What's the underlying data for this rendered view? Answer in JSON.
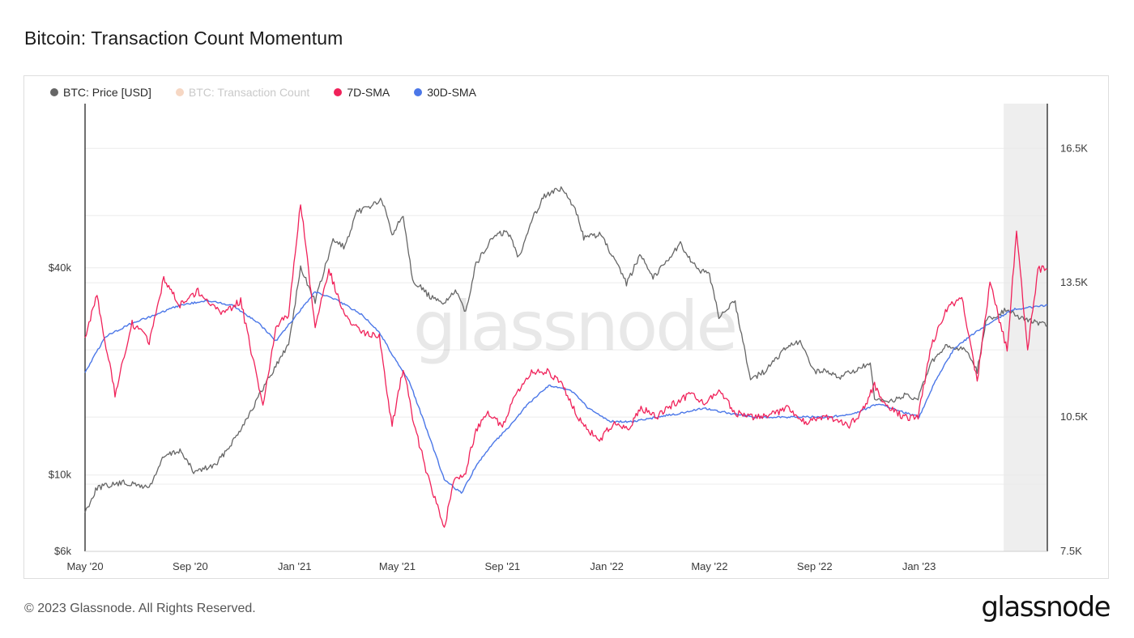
{
  "title": "Bitcoin: Transaction Count Momentum",
  "footer": "© 2023 Glassnode. All Rights Reserved.",
  "logo_text": "glassnode",
  "watermark": "glassnode",
  "legend": [
    {
      "label": "BTC: Price [USD]",
      "color": "#666666",
      "muted": false
    },
    {
      "label": "BTC: Transaction Count",
      "color": "#f6d7c3",
      "muted": true
    },
    {
      "label": "7D-SMA",
      "color": "#f0225a",
      "muted": false
    },
    {
      "label": "30D-SMA",
      "color": "#4b77e8",
      "muted": false
    }
  ],
  "chart_data": {
    "type": "line",
    "title": "Bitcoin: Transaction Count Momentum",
    "x_axis": {
      "range": [
        "2020-05-01",
        "2023-05-31"
      ],
      "tick_labels": [
        "May '20",
        "Sep '20",
        "Jan '21",
        "May '21",
        "Sep '21",
        "Jan '22",
        "May '22",
        "Sep '22",
        "Jan '23"
      ]
    },
    "y_left": {
      "scale": "log",
      "range": [
        6000,
        120000
      ],
      "tick_labels": [
        "$6k",
        "$10k",
        "$40k"
      ],
      "tick_values": [
        6000,
        10000,
        40000
      ]
    },
    "y_right": {
      "scale": "linear",
      "range": [
        7500,
        17500
      ],
      "tick_labels": [
        "7.5K",
        "10.5K",
        "13.5K",
        "16.5K"
      ],
      "tick_values": [
        7500,
        10500,
        13500,
        16500
      ]
    },
    "series": [
      {
        "name": "BTC: Price [USD]",
        "axis": "left",
        "color": "#666666",
        "points": [
          [
            "2020-05-01",
            7800
          ],
          [
            "2020-05-15",
            9200
          ],
          [
            "2020-06-15",
            9500
          ],
          [
            "2020-07-15",
            9200
          ],
          [
            "2020-08-01",
            11300
          ],
          [
            "2020-08-20",
            11800
          ],
          [
            "2020-09-05",
            10200
          ],
          [
            "2020-10-01",
            10700
          ],
          [
            "2020-10-25",
            13000
          ],
          [
            "2020-11-15",
            16000
          ],
          [
            "2020-12-01",
            19000
          ],
          [
            "2020-12-25",
            24000
          ],
          [
            "2021-01-08",
            40000
          ],
          [
            "2021-01-25",
            32000
          ],
          [
            "2021-02-15",
            48000
          ],
          [
            "2021-03-01",
            46000
          ],
          [
            "2021-03-15",
            58000
          ],
          [
            "2021-04-13",
            63000
          ],
          [
            "2021-04-25",
            50000
          ],
          [
            "2021-05-08",
            57000
          ],
          [
            "2021-05-19",
            37000
          ],
          [
            "2021-06-08",
            33000
          ],
          [
            "2021-06-22",
            31500
          ],
          [
            "2021-07-08",
            34000
          ],
          [
            "2021-07-20",
            30000
          ],
          [
            "2021-08-01",
            41000
          ],
          [
            "2021-08-22",
            49500
          ],
          [
            "2021-09-07",
            51000
          ],
          [
            "2021-09-20",
            43000
          ],
          [
            "2021-10-05",
            55000
          ],
          [
            "2021-10-20",
            65000
          ],
          [
            "2021-11-10",
            68000
          ],
          [
            "2021-11-28",
            57000
          ],
          [
            "2021-12-05",
            49000
          ],
          [
            "2021-12-25",
            50000
          ],
          [
            "2022-01-10",
            42000
          ],
          [
            "2022-01-24",
            36000
          ],
          [
            "2022-02-10",
            44000
          ],
          [
            "2022-02-24",
            37500
          ],
          [
            "2022-03-28",
            47000
          ],
          [
            "2022-04-15",
            40000
          ],
          [
            "2022-05-01",
            38000
          ],
          [
            "2022-05-12",
            29000
          ],
          [
            "2022-05-31",
            31800
          ],
          [
            "2022-06-18",
            19000
          ],
          [
            "2022-07-05",
            20000
          ],
          [
            "2022-07-30",
            23500
          ],
          [
            "2022-08-15",
            24300
          ],
          [
            "2022-09-01",
            20000
          ],
          [
            "2022-09-15",
            20000
          ],
          [
            "2022-10-01",
            19300
          ],
          [
            "2022-10-25",
            20500
          ],
          [
            "2022-11-05",
            21000
          ],
          [
            "2022-11-10",
            16500
          ],
          [
            "2022-11-25",
            16300
          ],
          [
            "2022-12-15",
            17000
          ],
          [
            "2022-12-31",
            16600
          ],
          [
            "2023-01-14",
            21000
          ],
          [
            "2023-02-01",
            23500
          ],
          [
            "2023-02-25",
            23200
          ],
          [
            "2023-03-10",
            20000
          ],
          [
            "2023-03-20",
            28000
          ],
          [
            "2023-04-14",
            30400
          ],
          [
            "2023-05-01",
            28500
          ],
          [
            "2023-05-31",
            27200
          ]
        ]
      },
      {
        "name": "7D-SMA",
        "axis": "right",
        "color": "#f0225a",
        "points": [
          [
            "2020-05-01",
            12300
          ],
          [
            "2020-05-15",
            13200
          ],
          [
            "2020-06-05",
            11000
          ],
          [
            "2020-06-25",
            12600
          ],
          [
            "2020-07-15",
            12200
          ],
          [
            "2020-08-01",
            13600
          ],
          [
            "2020-08-20",
            13000
          ],
          [
            "2020-09-10",
            13300
          ],
          [
            "2020-10-10",
            12800
          ],
          [
            "2020-10-30",
            13100
          ],
          [
            "2020-11-25",
            10700
          ],
          [
            "2020-12-10",
            12500
          ],
          [
            "2020-12-25",
            12800
          ],
          [
            "2021-01-08",
            15300
          ],
          [
            "2021-01-25",
            12500
          ],
          [
            "2021-02-10",
            13800
          ],
          [
            "2021-02-28",
            12800
          ],
          [
            "2021-03-20",
            12400
          ],
          [
            "2021-04-10",
            12300
          ],
          [
            "2021-04-25",
            10300
          ],
          [
            "2021-05-08",
            11600
          ],
          [
            "2021-05-19",
            10500
          ],
          [
            "2021-06-05",
            9200
          ],
          [
            "2021-06-25",
            8000
          ],
          [
            "2021-07-05",
            9000
          ],
          [
            "2021-07-20",
            9300
          ],
          [
            "2021-08-01",
            10200
          ],
          [
            "2021-08-15",
            10600
          ],
          [
            "2021-09-01",
            10300
          ],
          [
            "2021-09-15",
            11000
          ],
          [
            "2021-10-05",
            11500
          ],
          [
            "2021-10-25",
            11500
          ],
          [
            "2021-11-10",
            11200
          ],
          [
            "2021-11-28",
            10500
          ],
          [
            "2021-12-10",
            10200
          ],
          [
            "2021-12-25",
            10000
          ],
          [
            "2022-01-10",
            10400
          ],
          [
            "2022-01-25",
            10200
          ],
          [
            "2022-02-10",
            10700
          ],
          [
            "2022-02-28",
            10500
          ],
          [
            "2022-03-20",
            10800
          ],
          [
            "2022-04-10",
            11000
          ],
          [
            "2022-04-25",
            10800
          ],
          [
            "2022-05-12",
            11100
          ],
          [
            "2022-05-31",
            10600
          ],
          [
            "2022-06-18",
            10500
          ],
          [
            "2022-07-05",
            10500
          ],
          [
            "2022-07-30",
            10700
          ],
          [
            "2022-08-20",
            10400
          ],
          [
            "2022-09-15",
            10500
          ],
          [
            "2022-10-10",
            10300
          ],
          [
            "2022-10-25",
            10600
          ],
          [
            "2022-11-10",
            11200
          ],
          [
            "2022-11-25",
            10700
          ],
          [
            "2022-12-15",
            10500
          ],
          [
            "2022-12-31",
            10500
          ],
          [
            "2023-01-14",
            12000
          ],
          [
            "2023-02-01",
            12900
          ],
          [
            "2023-02-20",
            13200
          ],
          [
            "2023-03-10",
            11300
          ],
          [
            "2023-03-25",
            13500
          ],
          [
            "2023-04-14",
            12000
          ],
          [
            "2023-04-25",
            14700
          ],
          [
            "2023-05-08",
            12000
          ],
          [
            "2023-05-20",
            13800
          ],
          [
            "2023-05-31",
            13800
          ]
        ]
      },
      {
        "name": "30D-SMA",
        "axis": "right",
        "color": "#4b77e8",
        "points": [
          [
            "2020-05-01",
            11500
          ],
          [
            "2020-05-25",
            12300
          ],
          [
            "2020-06-25",
            12600
          ],
          [
            "2020-07-25",
            12800
          ],
          [
            "2020-08-20",
            13000
          ],
          [
            "2020-09-20",
            13100
          ],
          [
            "2020-10-20",
            13000
          ],
          [
            "2020-11-20",
            12600
          ],
          [
            "2020-12-10",
            12200
          ],
          [
            "2020-12-31",
            12700
          ],
          [
            "2021-01-25",
            13300
          ],
          [
            "2021-02-20",
            13100
          ],
          [
            "2021-03-20",
            12800
          ],
          [
            "2021-04-10",
            12400
          ],
          [
            "2021-04-25",
            11900
          ],
          [
            "2021-05-15",
            11300
          ],
          [
            "2021-06-05",
            10200
          ],
          [
            "2021-06-25",
            9100
          ],
          [
            "2021-07-15",
            8800
          ],
          [
            "2021-08-01",
            9400
          ],
          [
            "2021-08-20",
            9900
          ],
          [
            "2021-09-10",
            10300
          ],
          [
            "2021-10-01",
            10800
          ],
          [
            "2021-10-25",
            11200
          ],
          [
            "2021-11-20",
            11100
          ],
          [
            "2021-12-10",
            10700
          ],
          [
            "2022-01-05",
            10400
          ],
          [
            "2022-02-01",
            10400
          ],
          [
            "2022-03-01",
            10500
          ],
          [
            "2022-04-01",
            10600
          ],
          [
            "2022-04-25",
            10700
          ],
          [
            "2022-05-20",
            10600
          ],
          [
            "2022-06-20",
            10500
          ],
          [
            "2022-07-20",
            10500
          ],
          [
            "2022-08-20",
            10500
          ],
          [
            "2022-09-20",
            10500
          ],
          [
            "2022-10-20",
            10600
          ],
          [
            "2022-11-15",
            10800
          ],
          [
            "2022-12-15",
            10600
          ],
          [
            "2023-01-01",
            10500
          ],
          [
            "2023-01-20",
            11300
          ],
          [
            "2023-02-10",
            12000
          ],
          [
            "2023-03-01",
            12300
          ],
          [
            "2023-03-25",
            12600
          ],
          [
            "2023-04-20",
            12900
          ],
          [
            "2023-05-31",
            13000
          ]
        ]
      }
    ]
  }
}
